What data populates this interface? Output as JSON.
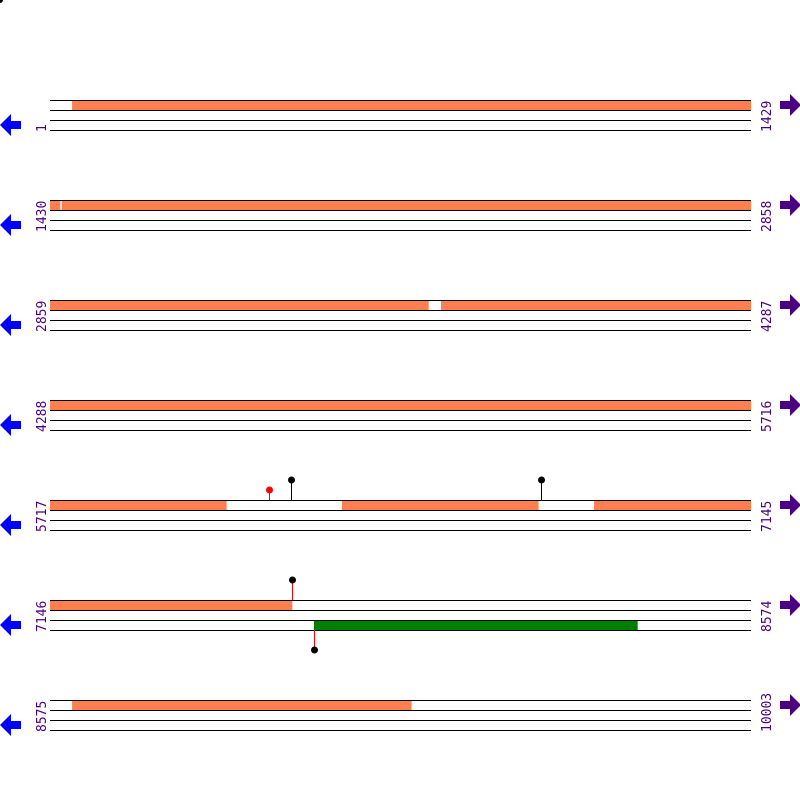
{
  "colors": {
    "orange_feature": "#ff7f50",
    "green_feature": "#008000",
    "label": "#4b0082",
    "left_arrow": "#0000ff",
    "right_arrow": "#4b0082",
    "pin_black": "#000000",
    "pin_red": "#ff0000",
    "stem": "#ff0000"
  },
  "icons": {
    "left": "arrow-left-icon",
    "right": "arrow-right-icon"
  },
  "rows": [
    {
      "start": "1",
      "end": "1429",
      "s": 1,
      "e": 1429,
      "features": [
        {
          "track": "top",
          "from": 46,
          "to": 1429,
          "color": "orange"
        }
      ],
      "pins": []
    },
    {
      "start": "1430",
      "end": "2858",
      "s": 1430,
      "e": 2858,
      "features": [
        {
          "track": "top",
          "from": 1430,
          "to": 1450,
          "color": "orange"
        },
        {
          "track": "top",
          "from": 1454,
          "to": 2858,
          "color": "orange"
        }
      ],
      "pins": []
    },
    {
      "start": "2859",
      "end": "4287",
      "s": 2859,
      "e": 4287,
      "features": [
        {
          "track": "top",
          "from": 2859,
          "to": 3630,
          "color": "orange"
        },
        {
          "track": "top",
          "from": 3656,
          "to": 4287,
          "color": "orange"
        }
      ],
      "pins": []
    },
    {
      "start": "4288",
      "end": "5716",
      "s": 4288,
      "e": 5716,
      "features": [
        {
          "track": "top",
          "from": 4288,
          "to": 5716,
          "color": "orange"
        }
      ],
      "pins": []
    },
    {
      "start": "5717",
      "end": "7145",
      "s": 5717,
      "e": 7145,
      "features": [
        {
          "track": "top",
          "from": 5717,
          "to": 6076,
          "color": "orange"
        },
        {
          "track": "top",
          "from": 6312,
          "to": 6712,
          "color": "orange"
        },
        {
          "track": "top",
          "from": 6826,
          "to": 7145,
          "color": "orange"
        }
      ],
      "pins": [
        {
          "pos": 6163,
          "dir": "up",
          "color": "red",
          "tall": false
        },
        {
          "pos": 6208,
          "dir": "up",
          "color": "black",
          "tall": true
        },
        {
          "pos": 6718,
          "dir": "up",
          "color": "black",
          "tall": true
        }
      ]
    },
    {
      "start": "7146",
      "end": "8574",
      "s": 7146,
      "e": 8574,
      "features": [
        {
          "track": "top",
          "from": 7146,
          "to": 7639,
          "color": "orange"
        },
        {
          "track": "bottom",
          "from": 7684,
          "to": 8343,
          "color": "green"
        }
      ],
      "pins": [
        {
          "pos": 7639,
          "dir": "up",
          "color": "black",
          "tall": true
        },
        {
          "pos": 7684,
          "dir": "down",
          "color": "black",
          "tall": true
        }
      ]
    },
    {
      "start": "8575",
      "end": "10003",
      "s": 8575,
      "e": 10003,
      "features": [
        {
          "track": "top",
          "from": 8620,
          "to": 9311,
          "color": "orange"
        }
      ],
      "pins": []
    }
  ]
}
